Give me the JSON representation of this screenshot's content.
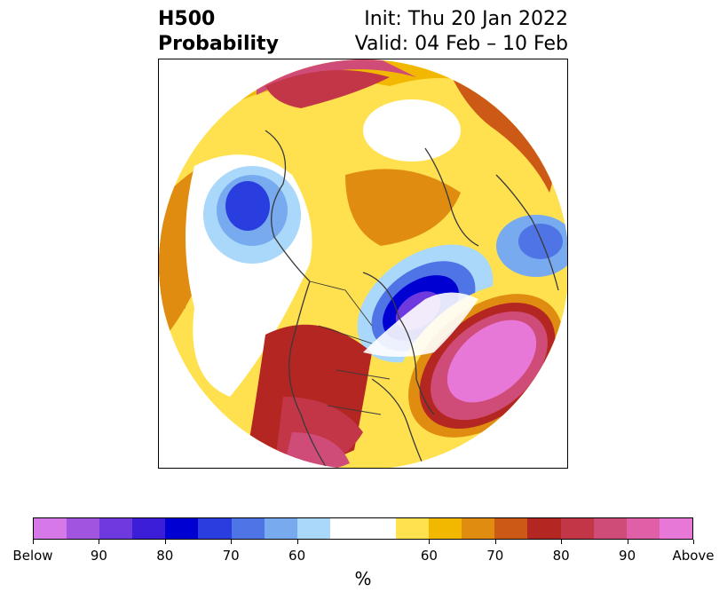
{
  "title": {
    "left_line1": "H500",
    "left_line2": "Probability",
    "right_line1": "Init: Thu 20 Jan 2022",
    "right_line2": "Valid: 04 Feb – 10 Feb"
  },
  "colorbar": {
    "unit": "%",
    "segments": [
      "#d678e8",
      "#a054e0",
      "#6e3ae0",
      "#3c1ed8",
      "#0000d2",
      "#2a3ee0",
      "#4e74e6",
      "#78aaf0",
      "#aad8fa",
      "#ffffff",
      "#ffffff",
      "#ffe150",
      "#f2b800",
      "#e08c10",
      "#cc5a16",
      "#b42622",
      "#c23648",
      "#d04c78",
      "#e060a8",
      "#e878d8"
    ],
    "tick_labels": [
      "Below",
      "90",
      "80",
      "70",
      "60",
      "60",
      "70",
      "80",
      "90",
      "Above"
    ]
  },
  "map": {
    "colors": {
      "strong_above": "#e878d8",
      "above": "#d04c78",
      "red": "#b42622",
      "orange": "#cc5a16",
      "gold": "#e08c10",
      "yellow": "#f2b800",
      "light_yellow": "#ffe150",
      "light_blue": "#aad8fa",
      "blue": "#4e74e6",
      "deep_blue": "#0000d2",
      "purple": "#6e3ae0",
      "coast": "#3a3a3a"
    }
  }
}
